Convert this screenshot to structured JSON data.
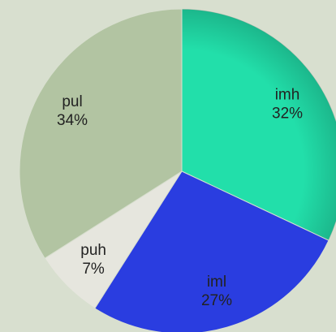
{
  "chart_data": {
    "type": "pie",
    "categories": [
      "imh",
      "iml",
      "puh",
      "pul"
    ],
    "values": [
      32,
      27,
      7,
      34
    ],
    "value_labels": [
      "32%",
      "27%",
      "7%",
      "34%"
    ],
    "colors": [
      "#22dfaa",
      "#2a3de0",
      "#e6e6de",
      "#b2c4a2"
    ]
  }
}
